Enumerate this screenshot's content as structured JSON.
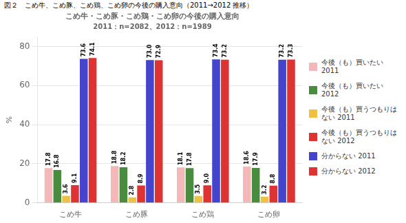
{
  "chart_data": {
    "type": "bar",
    "outer_title": "図２　こめ牛、こめ豚、こめ鶏、こめ卵の今後の購入意向（2011→2012 推移）",
    "title": "こめ牛・こめ豚・こめ鶏・こめ卵の今後の購入意向",
    "subtitle": "2011：n=2082、2012：n=1989",
    "ylabel": "%",
    "categories": [
      "こめ牛",
      "こめ豚",
      "こめ鶏",
      "こめ卵"
    ],
    "series": [
      {
        "name": "今後（も）買いたい\n2011",
        "color": "#f5b8b8",
        "values": [
          17.8,
          18.8,
          18.1,
          18.6
        ]
      },
      {
        "name": "今後（も）買いたい\n2012",
        "color": "#4a8c3f",
        "values": [
          16.8,
          18.2,
          17.8,
          17.9
        ]
      },
      {
        "name": "今後（も）買うつもりは\nない 2011",
        "color": "#f0c040",
        "values": [
          3.6,
          2.8,
          3.5,
          3.2
        ]
      },
      {
        "name": "今後（も）買うつもりは\nない 2012",
        "color": "#dd3333",
        "values": [
          9.1,
          8.9,
          9.0,
          8.8
        ],
        "value_labels": [
          "9.1",
          "8.9",
          "9.0",
          "8.8"
        ]
      },
      {
        "name": "分からない 2011",
        "color": "#4444cc",
        "values": [
          73.6,
          73.0,
          73.4,
          73.2
        ],
        "value_labels": [
          "73.6",
          "73.0",
          "73.4",
          "73.2"
        ]
      },
      {
        "name": "分からない 2012",
        "color": "#dd3333",
        "values": [
          74.1,
          72.9,
          73.2,
          73.3
        ]
      }
    ],
    "ylim": [
      0,
      85
    ],
    "yticks": [
      0,
      20,
      40,
      60,
      80
    ],
    "grid": true,
    "legend": "right",
    "data_labels": true
  }
}
